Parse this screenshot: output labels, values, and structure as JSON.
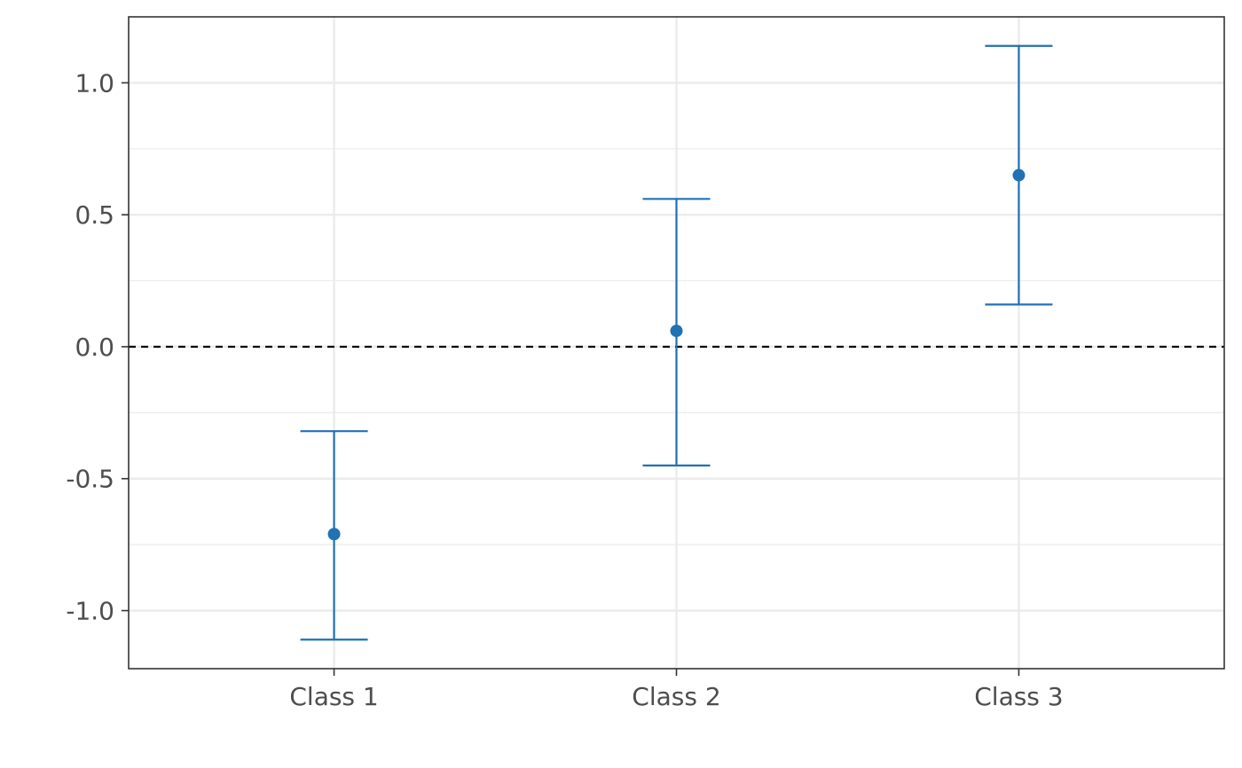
{
  "chart_data": {
    "type": "errorbar",
    "title": "",
    "xlabel": "",
    "ylabel": "",
    "categories": [
      "Class 1",
      "Class 2",
      "Class 3"
    ],
    "series": [
      {
        "estimates": [
          -0.71,
          0.06,
          0.65
        ],
        "lower": [
          -1.11,
          -0.45,
          0.16
        ],
        "upper": [
          -0.32,
          0.56,
          1.14
        ]
      }
    ],
    "ylim": [
      -1.22,
      1.25
    ],
    "yticks": [
      -1.0,
      -0.5,
      0.0,
      0.5,
      1.0
    ],
    "ytick_labels": [
      "-1.0",
      "-0.5",
      "0.0",
      "0.5",
      "1.0"
    ],
    "reference_line": 0,
    "grid": true,
    "colors": {
      "series": "#2171b5",
      "reference": "#000000",
      "grid": "#ebebeb",
      "frame": "#333333",
      "text": "#4d4d4d"
    }
  }
}
